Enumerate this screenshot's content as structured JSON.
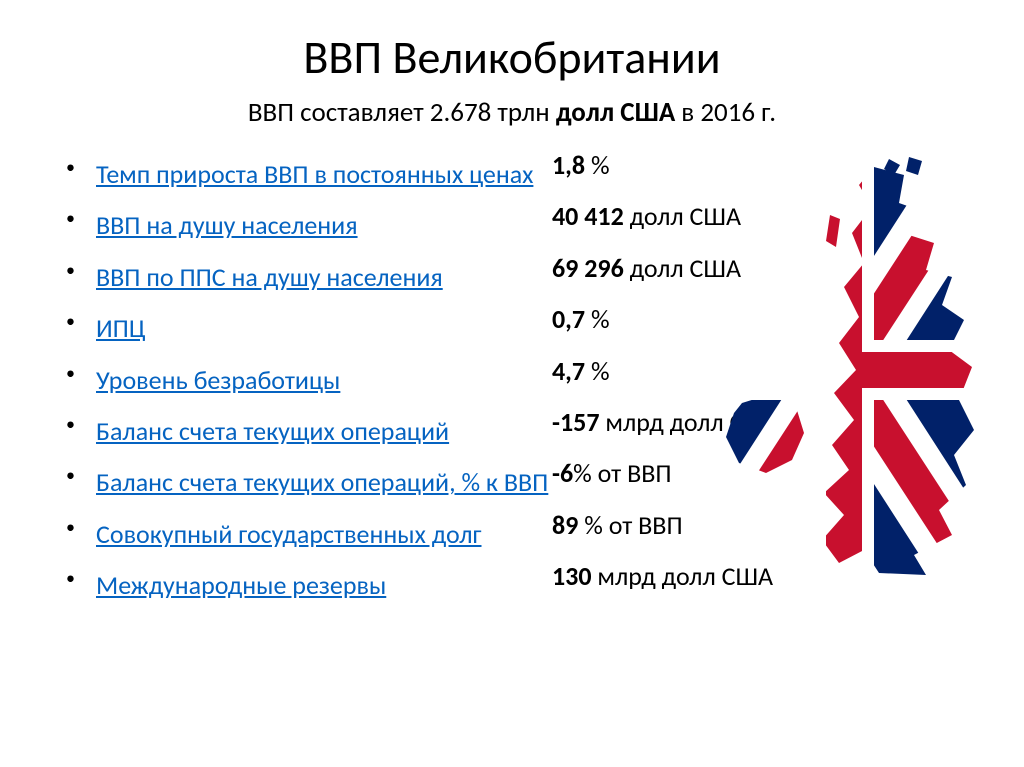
{
  "title": "ВВП Великобритании",
  "subtitle_pre": "ВВП составляет 2.678 трлн ",
  "subtitle_bold": "долл США",
  "subtitle_post": " в 2016 г.",
  "rows": [
    {
      "label": "Темп прироста ВВП в постоянных ценах",
      "value_bold": "1,8",
      "value_rest": " %"
    },
    {
      "label": "ВВП на душу населения",
      "value_bold": "40 412 ",
      "value_rest": "долл США"
    },
    {
      "label": "ВВП по ППС на душу населения",
      "value_bold": "69 296 ",
      "value_rest": "долл США"
    },
    {
      "label": "ИПЦ",
      "value_bold": "0,7 ",
      "value_rest": "%"
    },
    {
      "label": "Уровень безработицы",
      "value_bold": "4,7 ",
      "value_rest": "%"
    },
    {
      "label": "Баланс счета текущих операций",
      "value_bold": "-157 ",
      "value_rest": "млрд долл США"
    },
    {
      "label": "Баланс счета текущих операций, % к ВВП",
      "value_bold": "-6",
      "value_rest": "% от ВВП"
    },
    {
      "label": "Совокупный государственных долг",
      "value_bold": "89 ",
      "value_rest": "% от ВВП"
    },
    {
      "label": "Международные резервы",
      "value_bold": "130 ",
      "value_rest": "млрд долл США"
    }
  ],
  "style": {
    "link_color": "#0563c1",
    "text_color": "#000000",
    "bg_color": "#ffffff",
    "flag_red": "#c8102e",
    "flag_blue": "#012169",
    "flag_white": "#ffffff",
    "title_fontsize": 46,
    "subtitle_fontsize": 27,
    "row_fontsize": 26
  }
}
